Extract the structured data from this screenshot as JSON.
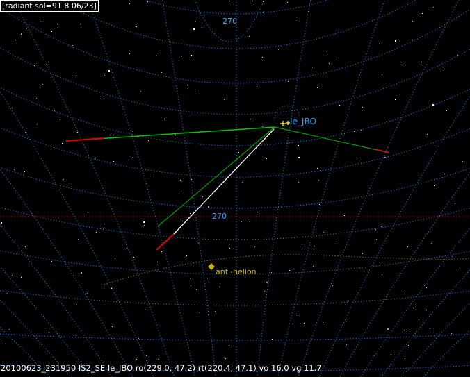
{
  "header": {
    "title": "[radiant sol=91.8 06/23]"
  },
  "grid_labels": {
    "top": "270",
    "center": "270"
  },
  "radiant": {
    "label": "Ie_JBO"
  },
  "antihelion": {
    "label": "anti-helion"
  },
  "status": {
    "text": "20100623_231950 IS2_SE Ie_JBO ro(229.0, 47.2) rt(220.4, 47.1) vo 16.0 vg 11.7"
  },
  "colors": {
    "grid": "#1e90ff",
    "track": "#00c800",
    "track_end": "#e00000",
    "observed": "#ffffff",
    "ecliptic": "#b4a000",
    "horizon": "#c00000",
    "radiant_text": "#2aa8ff"
  }
}
